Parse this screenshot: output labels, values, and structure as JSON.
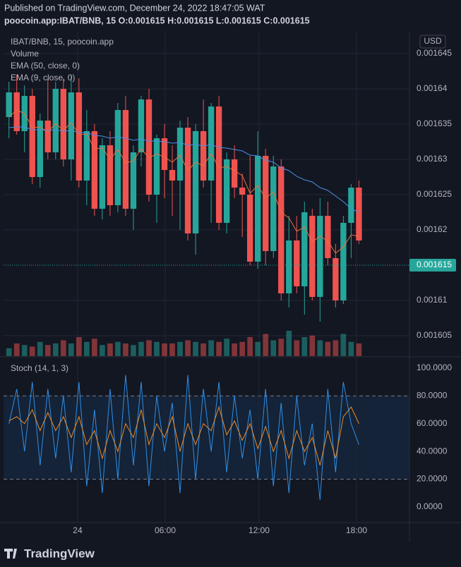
{
  "header": {
    "published": "Published on TradingView.com, December 24, 2022 18:47:05 WAT",
    "symbol_line": "poocoin.app:IBAT/BNB, 15  O:0.001615 H:0.001615 L:0.001615 C:0.001615"
  },
  "footer": {
    "brand": "TradingView"
  },
  "chart_data": [
    {
      "type": "candlestick",
      "title": "IBAT/BNB, 15, poocoin.app",
      "currency": "USD",
      "up_color": "#26a69a",
      "down_color": "#ef5350",
      "xlim": [
        -0.7,
        51.5
      ],
      "ylim": [
        0.0016021,
        0.0016481
      ],
      "yticks": [
        0.001645,
        0.00164,
        0.001635,
        0.00163,
        0.001625,
        0.00162,
        0.00161,
        0.001605
      ],
      "grid": true,
      "open": [
        0.001636,
        0.0016395,
        0.001634,
        0.001639,
        0.0016275,
        0.0016355,
        0.001631,
        0.00164,
        0.00163,
        0.0016395,
        0.001627,
        0.001634,
        0.001623,
        0.001632,
        0.0016235,
        0.001637,
        0.001623,
        0.001631,
        0.0016385,
        0.001625,
        0.001633,
        0.0016285,
        0.001627,
        0.0016345,
        0.0016195,
        0.001634,
        0.001627,
        0.0016375,
        0.001621,
        0.00163,
        0.001626,
        0.001625,
        0.0016155,
        0.0016305,
        0.001617,
        0.001629,
        0.001611,
        0.0016185,
        0.001612,
        0.001622,
        0.0016105,
        0.001622,
        0.001616,
        0.00161,
        0.001621,
        0.001626
      ],
      "high": [
        0.001641,
        0.001642,
        0.0016405,
        0.00164,
        0.0016365,
        0.0016415,
        0.001641,
        0.0016415,
        0.001642,
        0.0016415,
        0.001637,
        0.001635,
        0.001633,
        0.001634,
        0.001638,
        0.001639,
        0.001632,
        0.001639,
        0.00164,
        0.0016335,
        0.001635,
        0.001632,
        0.0016355,
        0.001636,
        0.001635,
        0.0016385,
        0.001638,
        0.001639,
        0.001631,
        0.001632,
        0.001628,
        0.0016305,
        0.001634,
        0.0016315,
        0.0016305,
        0.00163,
        0.001622,
        0.001622,
        0.001624,
        0.001623,
        0.0016245,
        0.001624,
        0.001618,
        0.001622,
        0.0016265,
        0.001627
      ],
      "low": [
        0.001633,
        0.0016335,
        0.001631,
        0.0016265,
        0.001626,
        0.00163,
        0.00163,
        0.001629,
        0.001627,
        0.001626,
        0.0016235,
        0.001622,
        0.0016215,
        0.001622,
        0.0016225,
        0.001622,
        0.00162,
        0.001629,
        0.001624,
        0.001621,
        0.0016245,
        0.001622,
        0.00162,
        0.0016185,
        0.0016165,
        0.001626,
        0.001621,
        0.00162,
        0.0016195,
        0.0016245,
        0.001619,
        0.001615,
        0.0016145,
        0.001615,
        0.001616,
        0.00161,
        0.001609,
        0.001611,
        0.001608,
        0.00161,
        0.001607,
        0.001615,
        0.001609,
        0.0016095,
        0.001616,
        0.001618
      ],
      "close": [
        0.0016395,
        0.001634,
        0.001639,
        0.0016275,
        0.0016355,
        0.001631,
        0.00164,
        0.00163,
        0.0016395,
        0.001627,
        0.001634,
        0.001623,
        0.001632,
        0.0016235,
        0.001637,
        0.001623,
        0.001631,
        0.0016385,
        0.001625,
        0.001633,
        0.0016285,
        0.001627,
        0.0016345,
        0.0016195,
        0.001634,
        0.001627,
        0.0016375,
        0.001621,
        0.00163,
        0.001626,
        0.001625,
        0.0016155,
        0.0016305,
        0.001617,
        0.001629,
        0.001611,
        0.0016185,
        0.001612,
        0.0016225,
        0.0016105,
        0.001622,
        0.001616,
        0.00161,
        0.001621,
        0.001626,
        0.0016185
      ],
      "volume": {
        "name": "Volume",
        "values": [
          5,
          8,
          7,
          6,
          9,
          7,
          8,
          10,
          8,
          12,
          9,
          11,
          7,
          8,
          9,
          8,
          7,
          9,
          10,
          9,
          8,
          8,
          9,
          10,
          9,
          8,
          10,
          9,
          11,
          8,
          9,
          12,
          9,
          14,
          10,
          11,
          16,
          10,
          12,
          13,
          10,
          9,
          10,
          14,
          9,
          8
        ]
      },
      "series": [
        {
          "name": "EMA (50, close, 0)",
          "color": "#4a8fe7",
          "values": [
            0.0016345,
            0.0016346,
            0.0016346,
            0.0016342,
            0.0016342,
            0.0016341,
            0.0016342,
            0.001634,
            0.0016341,
            0.0016338,
            0.0016338,
            0.0016334,
            0.0016333,
            0.001633,
            0.0016332,
            0.001633,
            0.0016327,
            0.0016329,
            0.0016326,
            0.0016326,
            0.0016325,
            0.0016323,
            0.0016324,
            0.001632,
            0.0016321,
            0.0016319,
            0.0016321,
            0.0016317,
            0.0016316,
            0.0016314,
            0.0016312,
            0.0016306,
            0.0016305,
            0.0016299,
            0.0016296,
            0.0016288,
            0.0016284,
            0.0016276,
            0.0016271,
            0.0016268,
            0.001626,
            0.0016256,
            0.0016248,
            0.001624,
            0.001623,
            0.0016225
          ]
        },
        {
          "name": "EMA (9, close, 0)",
          "color": "#e8703a",
          "values": [
            0.001636,
            0.001637,
            0.0016365,
            0.0016345,
            0.0016346,
            0.0016339,
            0.0016351,
            0.0016341,
            0.0016352,
            0.0016335,
            0.0016336,
            0.0016315,
            0.0016316,
            0.00163,
            0.0016314,
            0.0016295,
            0.0016298,
            0.0016315,
            0.0016302,
            0.0016308,
            0.0016303,
            0.0016296,
            0.0016306,
            0.0016284,
            0.0016296,
            0.0016291,
            0.0016308,
            0.0016288,
            0.001629,
            0.0016284,
            0.0016277,
            0.0016252,
            0.0016263,
            0.0016245,
            0.0016254,
            0.0016225,
            0.0016217,
            0.0016198,
            0.0016204,
            0.0016183,
            0.0016191,
            0.0016184,
            0.0016167,
            0.0016176,
            0.0016193,
            0.0016191
          ]
        }
      ],
      "last_price": {
        "value": 0.001615,
        "color": "#26a69a"
      }
    },
    {
      "type": "line",
      "title": "Stoch (14, 1, 3)",
      "xlim": [
        -0.7,
        51.5
      ],
      "ylim": [
        -10.7,
        107.1
      ],
      "xticks": [
        {
          "value": 8.83,
          "label": "24"
        },
        {
          "value": 20.09,
          "label": "06:00"
        },
        {
          "value": 32.16,
          "label": "12:00"
        },
        {
          "value": 44.69,
          "label": "18:00"
        }
      ],
      "yticks": [
        {
          "value": 100,
          "label": "100.0000"
        },
        {
          "value": 80,
          "label": "80.0000"
        },
        {
          "value": 60,
          "label": "60.0000"
        },
        {
          "value": 40,
          "label": "40.0000"
        },
        {
          "value": 20,
          "label": "20.0000"
        },
        {
          "value": 0,
          "label": "0.0000"
        }
      ],
      "band": [
        20,
        80
      ],
      "band_color": "#2196f3",
      "series": [
        {
          "color": "#2f8fe8",
          "values": [
            60,
            85,
            40,
            90,
            30,
            85,
            35,
            80,
            25,
            90,
            15,
            70,
            10,
            85,
            20,
            95,
            30,
            90,
            15,
            80,
            40,
            75,
            10,
            95,
            20,
            85,
            40,
            90,
            25,
            80,
            35,
            70,
            20,
            85,
            15,
            75,
            10,
            80,
            30,
            60,
            5,
            85,
            25,
            90,
            60,
            45
          ]
        },
        {
          "color": "#f08a24",
          "values": [
            62,
            65,
            60,
            70,
            55,
            68,
            55,
            65,
            50,
            65,
            45,
            55,
            35,
            55,
            40,
            60,
            50,
            70,
            45,
            60,
            50,
            65,
            40,
            60,
            45,
            60,
            55,
            72,
            52,
            62,
            48,
            60,
            42,
            58,
            40,
            55,
            35,
            55,
            40,
            50,
            30,
            55,
            35,
            65,
            72,
            60
          ]
        }
      ]
    }
  ]
}
